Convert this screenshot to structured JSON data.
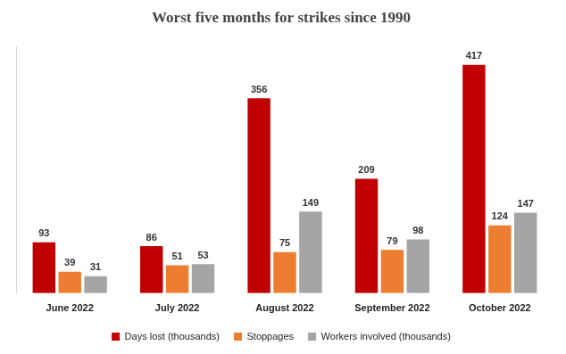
{
  "chart_data": {
    "type": "bar",
    "title": "Worst five months for strikes since 1990",
    "categories": [
      "June 2022",
      "July 2022",
      "August 2022",
      "September 2022",
      "October 2022"
    ],
    "series": [
      {
        "name": "Days lost (thousands)",
        "color": "#c00000",
        "values": [
          93,
          86,
          356,
          209,
          417
        ]
      },
      {
        "name": "Stoppages",
        "color": "#ed7d31",
        "values": [
          39,
          51,
          75,
          79,
          124
        ]
      },
      {
        "name": "Workers involved (thousands)",
        "color": "#a5a5a5",
        "values": [
          31,
          53,
          149,
          98,
          147
        ]
      }
    ],
    "ylim": [
      0,
      450
    ],
    "grid": false,
    "legend": "bottom",
    "data_labels": true,
    "tick_labels": "x"
  }
}
